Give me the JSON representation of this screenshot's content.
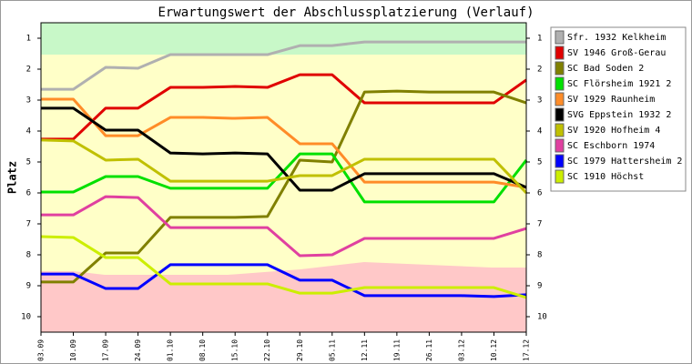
{
  "chart_data": {
    "type": "line",
    "title": "Erwartungswert der Abschlussplatzierung (Verlauf)",
    "y_label": "Platz",
    "categories": [
      "03.09",
      "10.09",
      "17.09",
      "24.09",
      "01.10",
      "08.10",
      "15.10",
      "22.10",
      "29.10",
      "05.11",
      "12.11",
      "19.11",
      "26.11",
      "03.12",
      "10.12",
      "17.12"
    ],
    "ylim": [
      0.5,
      10.5
    ],
    "yticks": [
      1,
      2,
      3,
      4,
      5,
      6,
      7,
      8,
      9,
      10
    ],
    "y2lim": [
      0.5,
      10.5
    ],
    "y2ticks": [
      1,
      2,
      3,
      4,
      5,
      6,
      7,
      8,
      9,
      10
    ],
    "y_reversed": true,
    "legend": "right",
    "series": [
      {
        "name": "Sfr. 1932 Kelkheim",
        "color": "#b0b0b0",
        "values": [
          2.65,
          2.65,
          1.94,
          1.97,
          1.53,
          1.53,
          1.53,
          1.53,
          1.24,
          1.24,
          1.12,
          1.12,
          1.12,
          1.12,
          1.12,
          1.12
        ]
      },
      {
        "name": "SV 1946 Groß-Gerau",
        "color": "#e00000",
        "values": [
          4.26,
          4.26,
          3.26,
          3.26,
          2.59,
          2.59,
          2.56,
          2.59,
          2.18,
          2.18,
          3.09,
          3.09,
          3.09,
          3.09,
          3.09,
          2.35
        ]
      },
      {
        "name": "SC Bad Soden 2",
        "color": "#808000",
        "values": [
          8.88,
          8.88,
          7.94,
          7.94,
          6.79,
          6.79,
          6.79,
          6.76,
          4.94,
          5.0,
          2.74,
          2.71,
          2.74,
          2.74,
          2.74,
          3.09
        ]
      },
      {
        "name": "SC Flörsheim 1921 2",
        "color": "#00e000",
        "values": [
          5.97,
          5.97,
          5.47,
          5.47,
          5.85,
          5.85,
          5.85,
          5.85,
          4.74,
          4.74,
          6.29,
          6.29,
          6.29,
          6.29,
          6.29,
          4.94
        ]
      },
      {
        "name": "SV 1929 Raunheim",
        "color": "#ff8c28",
        "values": [
          2.97,
          2.97,
          4.15,
          4.15,
          3.56,
          3.56,
          3.59,
          3.56,
          4.41,
          4.41,
          5.65,
          5.65,
          5.65,
          5.65,
          5.65,
          5.82
        ]
      },
      {
        "name": "SVG Eppstein 1932 2",
        "color": "#000000",
        "values": [
          3.26,
          3.26,
          3.97,
          3.97,
          4.71,
          4.74,
          4.71,
          4.74,
          5.91,
          5.91,
          5.38,
          5.38,
          5.38,
          5.38,
          5.38,
          5.82
        ]
      },
      {
        "name": "SV 1920 Hofheim 4",
        "color": "#c0c000",
        "values": [
          4.29,
          4.32,
          4.94,
          4.91,
          5.62,
          5.62,
          5.62,
          5.62,
          5.44,
          5.44,
          4.91,
          4.91,
          4.91,
          4.91,
          4.91,
          6.0
        ]
      },
      {
        "name": "SC Eschborn 1974",
        "color": "#e040a0",
        "values": [
          6.71,
          6.71,
          6.12,
          6.15,
          7.12,
          7.12,
          7.12,
          7.12,
          8.03,
          8.0,
          7.47,
          7.47,
          7.47,
          7.47,
          7.47,
          7.15
        ]
      },
      {
        "name": "SC 1979 Hattersheim 2",
        "color": "#0000ff",
        "values": [
          8.62,
          8.62,
          9.09,
          9.09,
          8.32,
          8.32,
          8.32,
          8.32,
          8.82,
          8.82,
          9.32,
          9.32,
          9.32,
          9.32,
          9.35,
          9.29
        ]
      },
      {
        "name": "SC 1910 Höchst",
        "color": "#ccee00",
        "values": [
          7.41,
          7.44,
          8.09,
          8.09,
          8.94,
          8.94,
          8.94,
          8.94,
          9.24,
          9.24,
          9.06,
          9.06,
          9.06,
          9.06,
          9.06,
          9.38
        ]
      }
    ]
  }
}
